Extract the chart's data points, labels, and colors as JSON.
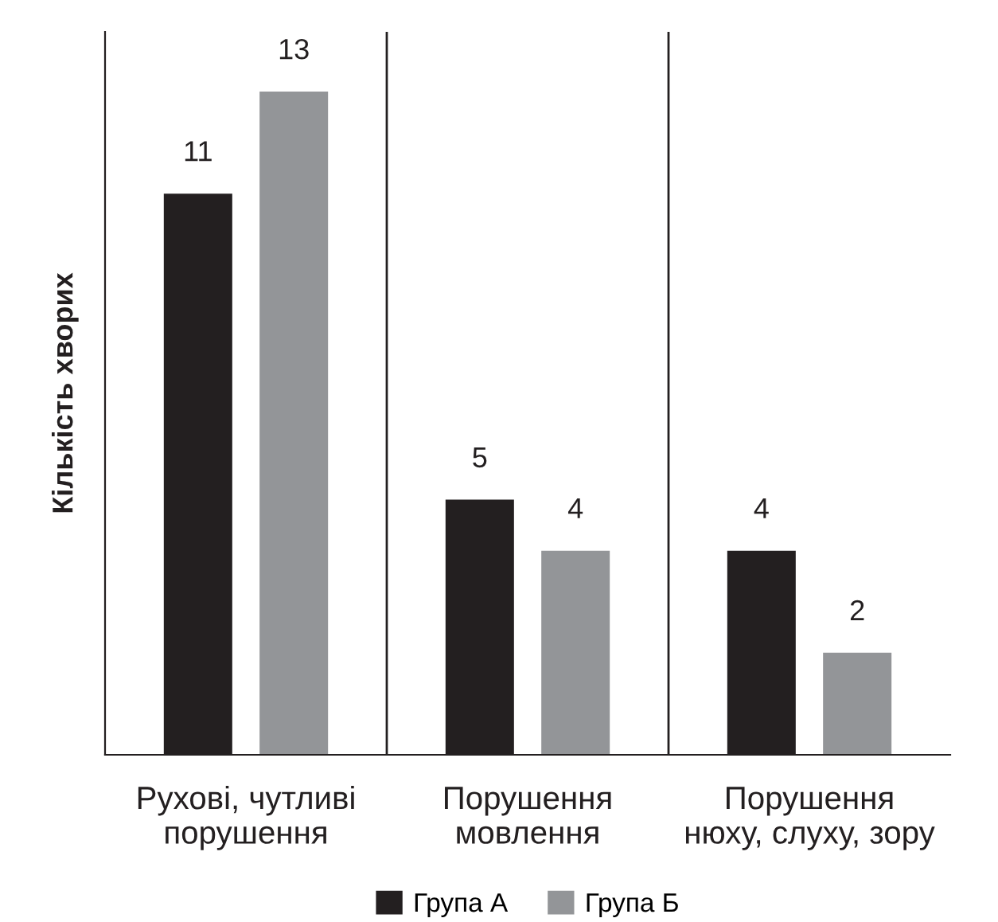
{
  "chart_data": {
    "type": "bar",
    "ylabel": "Кількість хворих",
    "categories": [
      "Рухові, чутливі\nпорушення",
      "Порушення\nмовлення",
      "Порушення\nнюху, слуху, зору"
    ],
    "series": [
      {
        "name": "Група А",
        "color": "#231f20",
        "values": [
          11,
          5,
          4
        ]
      },
      {
        "name": "Група Б",
        "color": "#939598",
        "values": [
          13,
          4,
          2
        ]
      }
    ],
    "data_labels": true,
    "grid": "x",
    "legend": "bottom"
  }
}
